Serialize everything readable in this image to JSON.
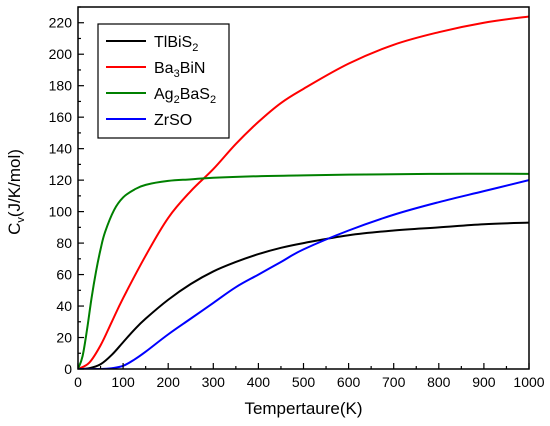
{
  "chart_data": {
    "type": "line",
    "title": "",
    "xlabel": "Tempertaure(K)",
    "ylabel": {
      "base": "C",
      "sub": "v",
      "rest": "(J/K/mol)"
    },
    "xlim": [
      0,
      1000
    ],
    "ylim": [
      0,
      230
    ],
    "xticks": [
      0,
      100,
      200,
      300,
      400,
      500,
      600,
      700,
      800,
      900,
      1000
    ],
    "yticks": [
      0,
      20,
      40,
      60,
      80,
      100,
      120,
      140,
      160,
      180,
      200,
      220
    ],
    "grid": false,
    "legend": "top-left",
    "series": [
      {
        "name": "TlBiS2",
        "legend_parts": [
          {
            "t": "TlBiS",
            "sub": false
          },
          {
            "t": "2",
            "sub": true
          }
        ],
        "color": "#000000",
        "x": [
          0,
          25,
          50,
          75,
          100,
          125,
          150,
          200,
          250,
          300,
          350,
          400,
          450,
          500,
          600,
          700,
          800,
          900,
          1000
        ],
        "y": [
          0,
          0.5,
          3,
          9,
          17,
          25,
          32,
          44,
          54,
          62,
          68,
          73,
          77,
          80,
          85,
          88,
          90,
          92,
          93
        ]
      },
      {
        "name": "Ba3BiN",
        "legend_parts": [
          {
            "t": "Ba",
            "sub": false
          },
          {
            "t": "3",
            "sub": true
          },
          {
            "t": "BiN",
            "sub": false
          }
        ],
        "color": "#ff0000",
        "x": [
          0,
          25,
          50,
          75,
          100,
          150,
          200,
          250,
          300,
          350,
          400,
          450,
          500,
          600,
          700,
          800,
          900,
          1000
        ],
        "y": [
          0,
          4,
          15,
          30,
          45,
          72,
          96,
          113,
          127,
          143,
          157,
          169,
          178,
          194,
          206,
          214,
          220,
          224
        ]
      },
      {
        "name": "Ag2BaS2",
        "legend_parts": [
          {
            "t": "Ag",
            "sub": false
          },
          {
            "t": "2",
            "sub": true
          },
          {
            "t": "BaS",
            "sub": false
          },
          {
            "t": "2",
            "sub": true
          }
        ],
        "color": "#008000",
        "x": [
          0,
          10,
          20,
          30,
          40,
          50,
          60,
          80,
          100,
          125,
          150,
          200,
          250,
          300,
          400,
          500,
          600,
          800,
          1000
        ],
        "y": [
          0,
          8,
          25,
          45,
          62,
          76,
          87,
          101,
          109,
          114,
          117,
          119.5,
          120.5,
          121.5,
          122.5,
          123,
          123.5,
          124,
          124
        ]
      },
      {
        "name": "ZrSO",
        "legend_parts": [
          {
            "t": "ZrSO",
            "sub": false
          }
        ],
        "color": "#0000ff",
        "x": [
          0,
          50,
          75,
          100,
          125,
          150,
          200,
          250,
          300,
          350,
          400,
          450,
          500,
          600,
          700,
          800,
          900,
          1000
        ],
        "y": [
          0,
          0,
          0.5,
          2,
          6,
          11,
          22,
          32,
          42,
          52,
          60,
          68,
          76,
          88,
          98,
          106,
          113,
          120
        ]
      }
    ]
  }
}
